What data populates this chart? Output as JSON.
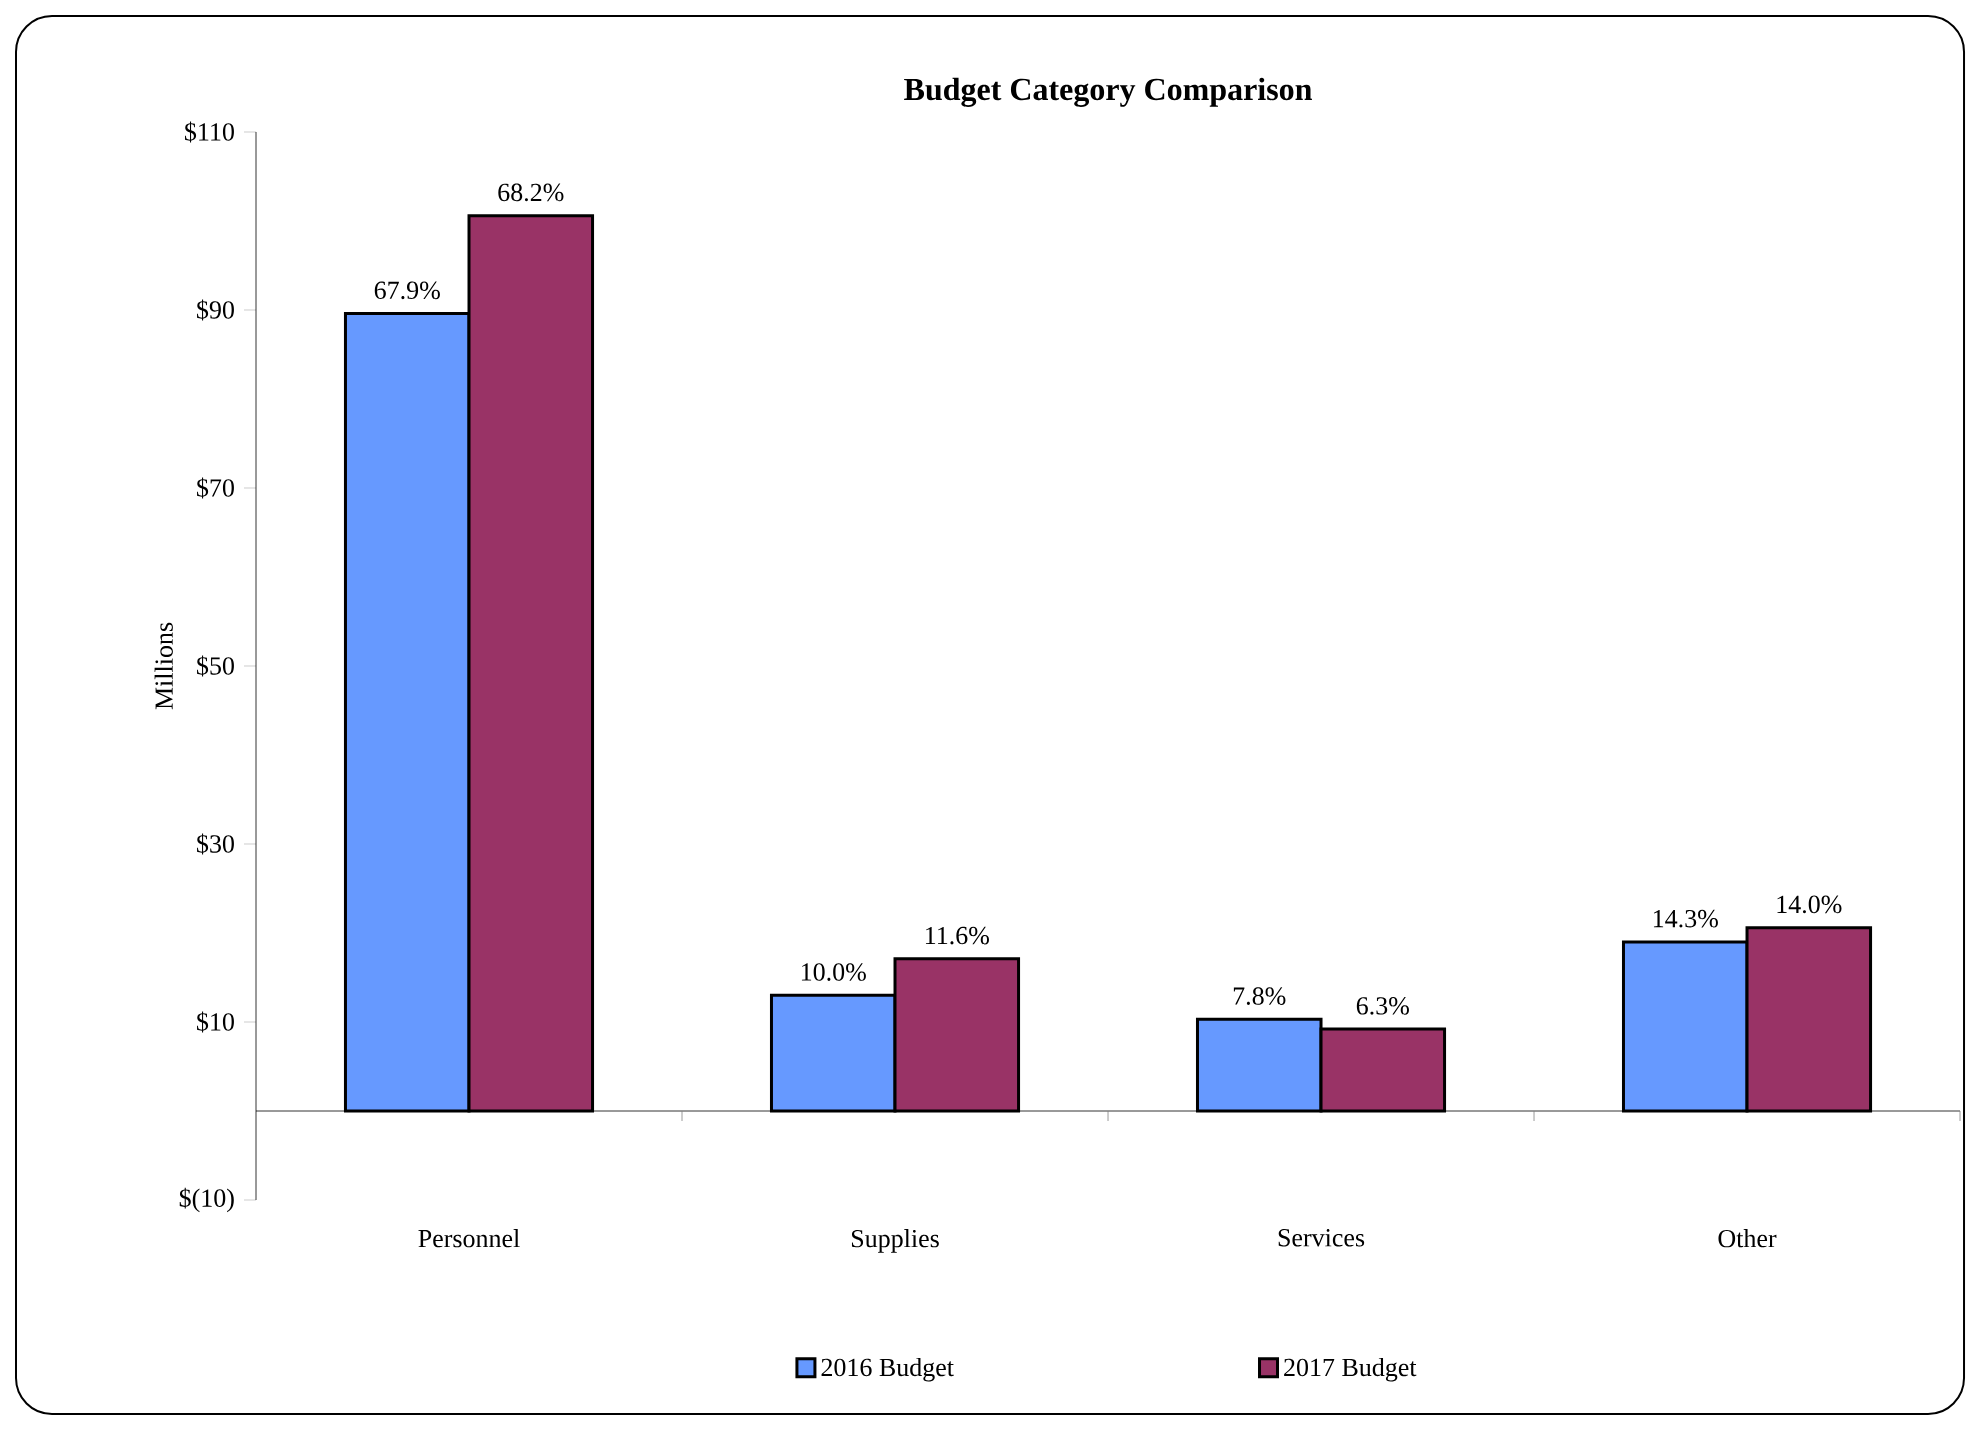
{
  "chart_data": {
    "type": "bar",
    "title": "Budget Category Comparison",
    "ylabel": "Millions",
    "categories": [
      "Personnel",
      "Supplies",
      "Services",
      "Other"
    ],
    "series": [
      {
        "name": "2016 Budget",
        "color": "#6699ff",
        "values": [
          89.6,
          13.0,
          10.3,
          19.0
        ]
      },
      {
        "name": "2017 Budget",
        "color": "#993366",
        "values": [
          100.6,
          17.1,
          9.2,
          20.6
        ]
      }
    ],
    "annotations": [
      {
        "text": "67.9%",
        "x": "Personnel",
        "y": 89.6
      },
      {
        "text": "10.0%",
        "x": "Supplies",
        "y": 13.0
      },
      {
        "text": "7.8%",
        "x": "Services",
        "y": 10.3
      },
      {
        "text": "14.3%",
        "x": "Other",
        "y": 19.0
      },
      {
        "text": "68.2%",
        "x": "Personnel",
        "y": 100.6
      },
      {
        "text": "11.6%",
        "x": "Supplies",
        "y": 17.1
      },
      {
        "text": "6.3%",
        "x": "Services",
        "y": 9.2
      },
      {
        "text": "14.0%",
        "x": "Other",
        "y": 20.6
      }
    ],
    "ylim": [
      -10,
      110
    ],
    "yticks": [
      {
        "value": -10,
        "label": "$(10)"
      },
      {
        "value": 10,
        "label": "$10"
      },
      {
        "value": 30,
        "label": "$30"
      },
      {
        "value": 50,
        "label": "$50"
      },
      {
        "value": 70,
        "label": "$70"
      },
      {
        "value": 90,
        "label": "$90"
      },
      {
        "value": 110,
        "label": "$110"
      }
    ],
    "legend": "bottom"
  }
}
